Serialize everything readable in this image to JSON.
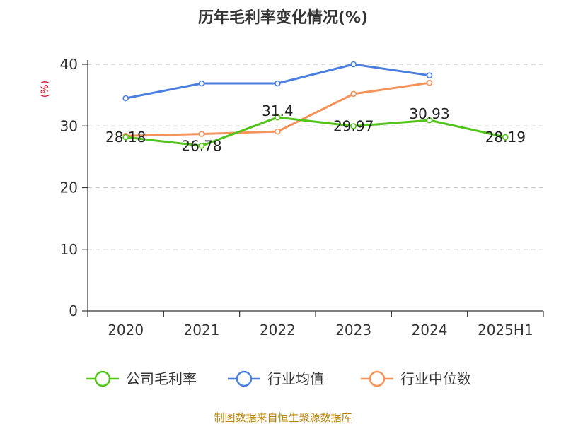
{
  "chart_data": {
    "type": "line",
    "title": "历年毛利率变化情况(%)",
    "ylabel": "(%)",
    "ylim": [
      0,
      40
    ],
    "y_ticks": [
      "0",
      "10",
      "20",
      "30",
      "40"
    ],
    "categories": [
      "2020",
      "2021",
      "2022",
      "2023",
      "2024",
      "2025H1"
    ],
    "grid": true,
    "legend_position": "bottom",
    "series": [
      {
        "name": "公司毛利率",
        "color": "#52c41a",
        "values": [
          28.18,
          26.78,
          31.4,
          29.97,
          30.93,
          28.19
        ],
        "labels": [
          "28.18",
          "26.78",
          "31.4",
          "29.97",
          "30.93",
          "28.19"
        ]
      },
      {
        "name": "行业均值",
        "color": "#4a7fe0",
        "values": [
          34.5,
          36.9,
          36.9,
          40.0,
          38.2,
          null
        ]
      },
      {
        "name": "行业中位数",
        "color": "#f4935a",
        "values": [
          28.4,
          28.7,
          29.1,
          35.2,
          37.0,
          null
        ]
      }
    ]
  },
  "footer": "制图数据来自恒生聚源数据库"
}
